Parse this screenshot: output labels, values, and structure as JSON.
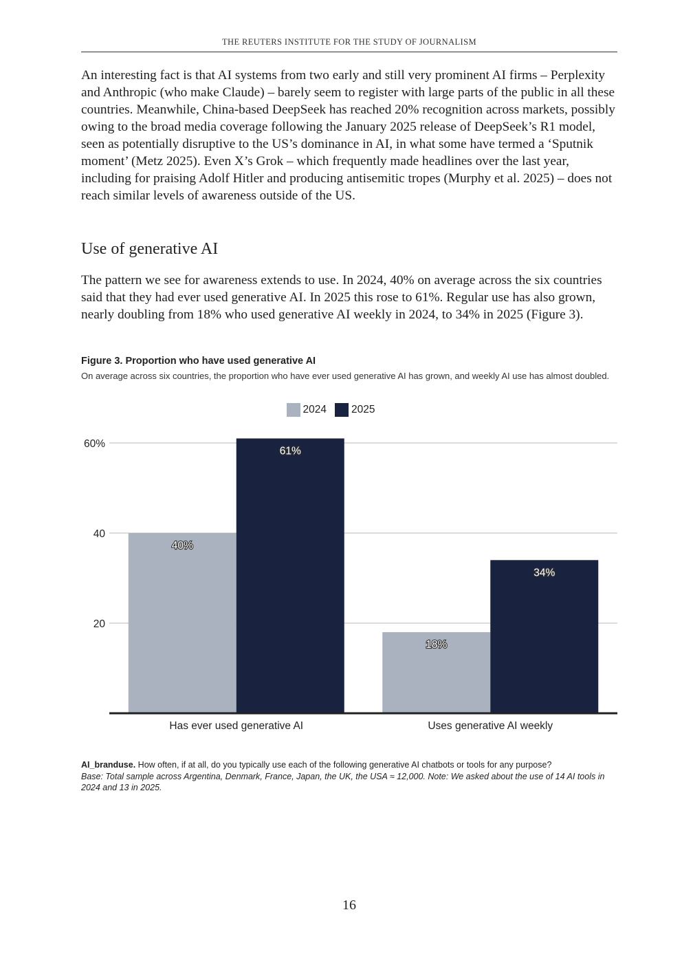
{
  "header": "THE REUTERS INSTITUTE FOR THE STUDY OF JOURNALISM",
  "paragraph1": "An interesting fact is that AI systems from two early and still very prominent AI firms – Perplexity and Anthropic (who make Claude) – barely seem to register with large parts of the public in all these countries. Meanwhile, China-based DeepSeek has reached 20% recognition across markets, possibly owing to the broad media coverage following the January 2025 release of DeepSeek’s R1 model, seen as potentially disruptive to the US’s dominance in AI, in what some have termed a ‘Sputnik moment’ (Metz 2025). Even X’s Grok – which frequently made headlines over the last year, including for praising Adolf Hitler and producing antisemitic tropes (Murphy et al. 2025) – does not reach similar levels of awareness outside of the US.",
  "section_heading": "Use of generative AI",
  "paragraph2": "The pattern we see for awareness extends to use. In 2024, 40% on average across the six countries said that they had ever used generative AI. In 2025 this rose to 61%. Regular use has also grown, nearly doubling from 18% who used generative AI weekly in 2024, to 34% in 2025 (Figure 3).",
  "figure": {
    "title": "Figure 3.  Proportion who have used generative AI",
    "subtitle": "On average across six countries, the proportion who have ever used generative AI has grown, and weekly AI use has almost doubled."
  },
  "chart_data": {
    "type": "bar",
    "title": "Proportion who have used generative AI",
    "categories": [
      "Has ever used generative AI",
      "Uses generative AI weekly"
    ],
    "series": [
      {
        "name": "2024",
        "values": [
          40,
          18
        ],
        "labels": [
          "40%",
          "18%"
        ],
        "color": "#a9b2be"
      },
      {
        "name": "2025",
        "values": [
          61,
          34
        ],
        "labels": [
          "61%",
          "34%"
        ],
        "color": "#19233f"
      }
    ],
    "yticks": [
      20,
      40,
      60
    ],
    "ytick_labels": [
      "20",
      "40",
      "60%"
    ],
    "ylim": [
      0,
      60
    ],
    "grid": true,
    "legend": "top-center",
    "xlabel": "",
    "ylabel": ""
  },
  "notes": {
    "label": "AI_branduse.",
    "question": " How often, if at all, do you typically use each of the following generative AI chatbots or tools for any purpose?",
    "base": "Base: Total sample across Argentina, Denmark, France, Japan, the UK, the USA ≈ 12,000. Note: We asked about the use of 14 AI tools in 2024 and 13 in 2025."
  },
  "page_number": "16"
}
